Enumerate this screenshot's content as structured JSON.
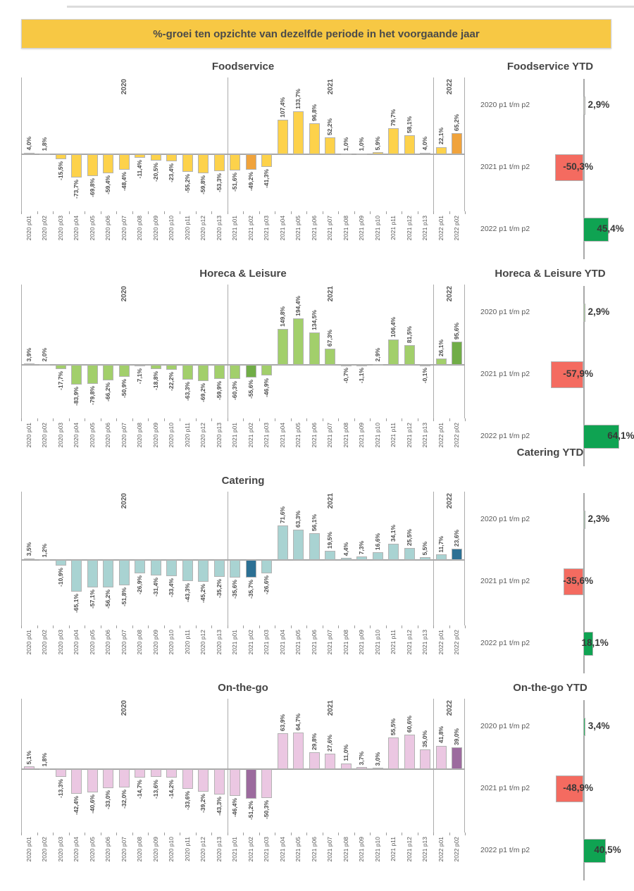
{
  "banner": {
    "text": "%-groei ten opzichte van dezelfde periode in het voorgaande jaar"
  },
  "colors": {
    "banner_bg": "#F7C844",
    "axis_line": "#ABABAB",
    "zero_line": "#A8A8A8",
    "bar_outline": "#B3B3B3",
    "label_text": "#595959",
    "title_text": "#454545",
    "ytd_negative": "#F46B60",
    "ytd_positive": "#0FA352"
  },
  "year_groups": {
    "labels": [
      "2020",
      "2021",
      "2022"
    ],
    "counts": [
      13,
      13,
      2
    ]
  },
  "chart_data": [
    {
      "type": "bar",
      "title": "Foodservice",
      "bar_color": "#FDD24B",
      "highlight_color": "#F0A33C",
      "highlight_indices": [
        1,
        14,
        27
      ],
      "categories": [
        "2020 p01",
        "2020 p02",
        "2020 p03",
        "2020 p04",
        "2020 p05",
        "2020 p06",
        "2020 p07",
        "2020 p08",
        "2020 p09",
        "2020 p10",
        "2020 p11",
        "2020 p12",
        "2020 p13",
        "2021 p01",
        "2021 p02",
        "2021 p03",
        "2021 p04",
        "2021 p05",
        "2021 p06",
        "2021 p07",
        "2021 p08",
        "2021 p09",
        "2021 p10",
        "2021 p11",
        "2021 p12",
        "2021 p13",
        "2022 p01",
        "2022 p02"
      ],
      "values": [
        4.0,
        1.8,
        -15.5,
        -73.7,
        -69.8,
        -59.4,
        -48.4,
        -11.4,
        -20.5,
        -23.4,
        -55.2,
        -59.8,
        -53.3,
        -51.6,
        -49.2,
        -41.3,
        107.4,
        133.7,
        96.8,
        52.2,
        1.0,
        1.0,
        5.9,
        79.7,
        58.1,
        4.0,
        22.1,
        65.2
      ],
      "labels": [
        "4,0%",
        "1,8%",
        "-15,5%",
        "-73,7%",
        "-69,8%",
        "-59,4%",
        "-48,4%",
        "-11,4%",
        "-20,5%",
        "-23,4%",
        "-55,2%",
        "-59,8%",
        "-53,3%",
        "-51,6%",
        "-49,2%",
        "-41,3%",
        "107,4%",
        "133,7%",
        "96,8%",
        "52,2%",
        "1,0%",
        "1,0%",
        "5,9%",
        "79,7%",
        "58,1%",
        "4,0%",
        "22,1%",
        "65,2%"
      ],
      "ytd": {
        "title": "Foodservice YTD",
        "rows": [
          {
            "label": "2020 p1 t/m p2",
            "value": 2.9,
            "value_label": "2,9%",
            "color": "#C9CBC4"
          },
          {
            "label": "2021 p1 t/m p2",
            "value": -50.3,
            "value_label": "-50,3%",
            "color": "#F46B60"
          },
          {
            "label": "2022 p1 t/m p2",
            "value": 45.4,
            "value_label": "45,4%",
            "color": "#0FA352"
          }
        ]
      }
    },
    {
      "type": "bar",
      "title": "Horeca & Leisure",
      "bar_color": "#A2CF6B",
      "highlight_color": "#71AD47",
      "highlight_indices": [
        1,
        14,
        27
      ],
      "categories": [
        "2020 p01",
        "2020 p02",
        "2020 p03",
        "2020 p04",
        "2020 p05",
        "2020 p06",
        "2020 p07",
        "2020 p08",
        "2020 p09",
        "2020 p10",
        "2020 p11",
        "2020 p12",
        "2020 p13",
        "2021 p01",
        "2021 p02",
        "2021 p03",
        "2021 p04",
        "2021 p05",
        "2021 p06",
        "2021 p07",
        "2021 p08",
        "2021 p09",
        "2021 p10",
        "2021 p11",
        "2021 p12",
        "2021 p13",
        "2022 p01",
        "2022 p02"
      ],
      "values": [
        3.9,
        2.0,
        -17.7,
        -83.9,
        -79.8,
        -66.2,
        -50.9,
        -7.1,
        -18.8,
        -22.2,
        -63.3,
        -69.2,
        -59.9,
        -60.3,
        -55.6,
        -46.9,
        149.8,
        194.4,
        134.5,
        67.3,
        -0.7,
        -1.1,
        2.9,
        106.4,
        81.5,
        -0.1,
        26.1,
        95.6
      ],
      "labels": [
        "3,9%",
        "2,0%",
        "-17,7%",
        "-83,9%",
        "-79,8%",
        "-66,2%",
        "-50,9%",
        "-7,1%",
        "-18,8%",
        "-22,2%",
        "-63,3%",
        "-69,2%",
        "-59,9%",
        "-60,3%",
        "-55,6%",
        "-46,9%",
        "149,8%",
        "194,4%",
        "134,5%",
        "67,3%",
        "-0,7%",
        "-1,1%",
        "2,9%",
        "106,4%",
        "81,5%",
        "-0,1%",
        "26,1%",
        "95,6%"
      ],
      "ytd": {
        "title": "Horeca & Leisure YTD",
        "rows": [
          {
            "label": "2020 p1 t/m p2",
            "value": 2.9,
            "value_label": "2,9%",
            "color": "#A9C8A0"
          },
          {
            "label": "2021 p1 t/m p2",
            "value": -57.9,
            "value_label": "-57,9%",
            "color": "#F46B60"
          },
          {
            "label": "2022 p1 t/m p2",
            "value": 64.1,
            "value_label": "64,1%",
            "color": "#0FA352"
          }
        ]
      }
    },
    {
      "type": "bar",
      "title": "Catering",
      "bar_color": "#A9D3D2",
      "highlight_color": "#2C7094",
      "highlight_indices": [
        1,
        14,
        27
      ],
      "categories": [
        "2020 p01",
        "2020 p02",
        "2020 p03",
        "2020 p04",
        "2020 p05",
        "2020 p06",
        "2020 p07",
        "2020 p08",
        "2020 p09",
        "2020 p10",
        "2020 p11",
        "2020 p12",
        "2020 p13",
        "2021 p01",
        "2021 p02",
        "2021 p03",
        "2021 p04",
        "2021 p05",
        "2021 p06",
        "2021 p07",
        "2021 p08",
        "2021 p09",
        "2021 p10",
        "2021 p11",
        "2021 p12",
        "2021 p13",
        "2022 p01",
        "2022 p02"
      ],
      "values": [
        3.5,
        1.2,
        -10.9,
        -65.1,
        -57.1,
        -56.2,
        -51.8,
        -26.9,
        -31.4,
        -33.4,
        -43.3,
        -45.2,
        -35.2,
        -35.6,
        -35.7,
        -26.6,
        71.6,
        63.3,
        56.1,
        19.5,
        4.4,
        7.3,
        16.6,
        34.1,
        25.5,
        5.5,
        11.7,
        23.6
      ],
      "labels": [
        "3,5%",
        "1,2%",
        "-10,9%",
        "-65,1%",
        "-57,1%",
        "-56,2%",
        "-51,8%",
        "-26,9%",
        "-31,4%",
        "-33,4%",
        "-43,3%",
        "-45,2%",
        "-35,2%",
        "-35,6%",
        "-35,7%",
        "-26,6%",
        "71,6%",
        "63,3%",
        "56,1%",
        "19,5%",
        "4,4%",
        "7,3%",
        "16,6%",
        "34,1%",
        "25,5%",
        "5,5%",
        "11,7%",
        "23,6%"
      ],
      "ytd": {
        "title": "Catering YTD",
        "rows": [
          {
            "label": "2020 p1 t/m p2",
            "value": 2.3,
            "value_label": "2,3%",
            "color": "#A3BCA8"
          },
          {
            "label": "2021 p1 t/m p2",
            "value": -35.6,
            "value_label": "-35,6%",
            "color": "#F46B60"
          },
          {
            "label": "2022 p1 t/m p2",
            "value": 18.1,
            "value_label": "18,1%",
            "color": "#0FA352"
          }
        ]
      }
    },
    {
      "type": "bar",
      "title": "On-the-go",
      "bar_color": "#EBC7E2",
      "highlight_color": "#9C6B9E",
      "highlight_indices": [
        1,
        14,
        27
      ],
      "categories": [
        "2020 p01",
        "2020 p02",
        "2020 p03",
        "2020 p04",
        "2020 p05",
        "2020 p06",
        "2020 p07",
        "2020 p08",
        "2020 p09",
        "2020 p10",
        "2020 p11",
        "2020 p12",
        "2020 p13",
        "2021 p01",
        "2021 p02",
        "2021 p03",
        "2021 p04",
        "2021 p05",
        "2021 p06",
        "2021 p07",
        "2021 p08",
        "2021 p09",
        "2021 p10",
        "2021 p11",
        "2021 p12",
        "2021 p13",
        "2022 p01",
        "2022 p02"
      ],
      "values": [
        5.1,
        1.8,
        -13.3,
        -42.4,
        -40.6,
        -33.0,
        -32.0,
        -14.7,
        -13.6,
        -14.2,
        -33.6,
        -39.2,
        -43.3,
        -46.4,
        -51.2,
        -50.3,
        63.9,
        64.7,
        29.8,
        27.6,
        11.0,
        3.7,
        3.0,
        55.5,
        60.6,
        35.0,
        41.8,
        39.0
      ],
      "labels": [
        "5,1%",
        "1,8%",
        "-13,3%",
        "-42,4%",
        "-40,6%",
        "-33,0%",
        "-32,0%",
        "-14,7%",
        "-13,6%",
        "-14,2%",
        "-33,6%",
        "-39,2%",
        "-43,3%",
        "-46,4%",
        "-51,2%",
        "-50,3%",
        "63,9%",
        "64,7%",
        "29,8%",
        "27,6%",
        "11,0%",
        "3,7%",
        "3,0%",
        "55,5%",
        "60,6%",
        "35,0%",
        "41,8%",
        "39,0%"
      ],
      "ytd": {
        "title": "On-the-go YTD",
        "rows": [
          {
            "label": "2020 p1 t/m p2",
            "value": 3.4,
            "value_label": "3,4%",
            "color": "#2FB567"
          },
          {
            "label": "2021 p1 t/m p2",
            "value": -48.9,
            "value_label": "-48,9%",
            "color": "#F46B60"
          },
          {
            "label": "2022 p1 t/m p2",
            "value": 40.5,
            "value_label": "40,5%",
            "color": "#0FA352"
          }
        ]
      }
    }
  ]
}
